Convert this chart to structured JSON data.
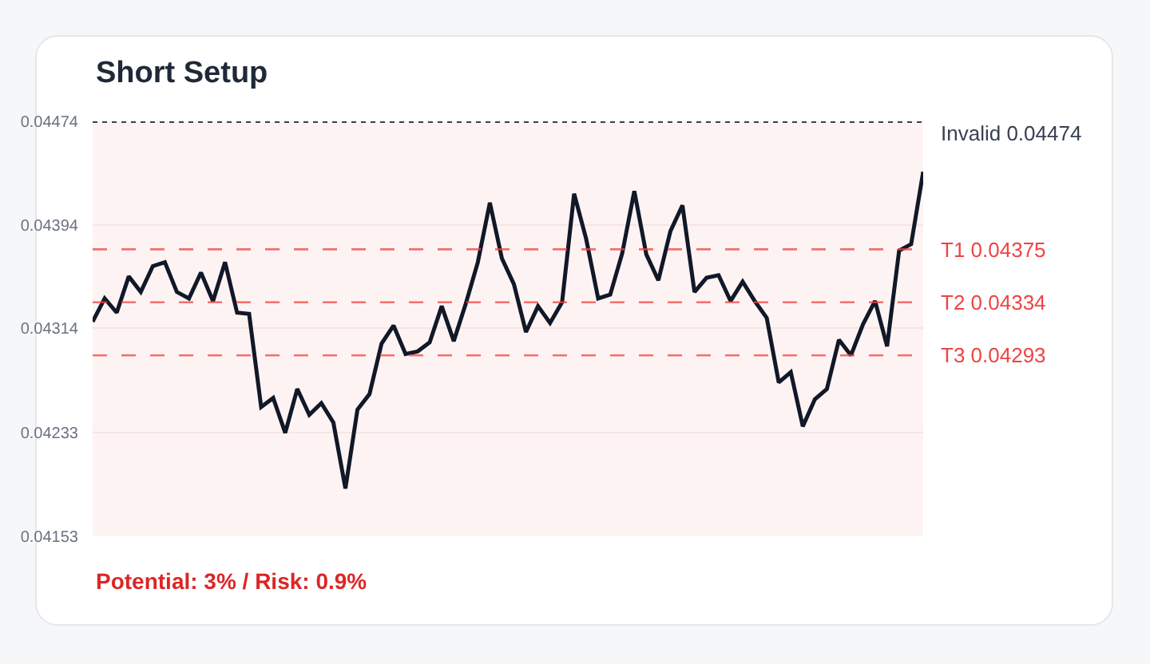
{
  "chart_data": {
    "type": "line",
    "title": "Short Setup",
    "categories": [
      null,
      null,
      null,
      null,
      null,
      null,
      null,
      null,
      null,
      null,
      null,
      null,
      null,
      null,
      null,
      null,
      null,
      null,
      null,
      null,
      null,
      null,
      null,
      null,
      null,
      null,
      null,
      null,
      null,
      null,
      null,
      null,
      null,
      null,
      null,
      null,
      null,
      null,
      null,
      null,
      null,
      null,
      null,
      null,
      null,
      null,
      null,
      null,
      null,
      null,
      null,
      null,
      null,
      null,
      null,
      null,
      null,
      null,
      null,
      null,
      null,
      null,
      null,
      null,
      null,
      null,
      null,
      null,
      null,
      null
    ],
    "series": [
      {
        "color": "#111827",
        "values": [
          0.04319,
          0.04337,
          0.04326,
          0.04354,
          0.04342,
          0.04362,
          0.04365,
          0.04342,
          0.04337,
          0.04357,
          0.04335,
          0.04365,
          0.04326,
          0.04325,
          0.04253,
          0.0426,
          0.04233,
          0.04267,
          0.04247,
          0.04256,
          0.04241,
          0.0419,
          0.04251,
          0.04263,
          0.04302,
          0.04316,
          0.04294,
          0.04296,
          0.04303,
          0.04331,
          0.04304,
          0.04333,
          0.04365,
          0.04411,
          0.04368,
          0.04348,
          0.04311,
          0.04331,
          0.04318,
          0.04334,
          0.04418,
          0.04383,
          0.04337,
          0.0434,
          0.04372,
          0.0442,
          0.04371,
          0.04351,
          0.04389,
          0.04409,
          0.04342,
          0.04353,
          0.04355,
          0.04335,
          0.0435,
          0.04335,
          0.04322,
          0.04272,
          0.0428,
          0.04238,
          0.04259,
          0.04267,
          0.04305,
          0.04293,
          0.04317,
          0.04335,
          0.043,
          0.04374,
          0.04379,
          0.04435
        ]
      }
    ],
    "ylim": [
      0.04153,
      0.04474
    ],
    "yticks": [
      0.04153,
      0.04233,
      0.04314,
      0.04394,
      0.04474
    ],
    "grid": "y",
    "tick_labels": "y",
    "line_style": "solid",
    "ref_lines": [
      {
        "axis": "y",
        "value": 0.04474,
        "label": "Invalid 0.04474",
        "color": "#374151",
        "line_style": "dotted"
      },
      {
        "axis": "y",
        "value": 0.04375,
        "label": "T1 0.04375",
        "color": "#ef4444",
        "line_style": "dashed"
      },
      {
        "axis": "y",
        "value": 0.04334,
        "label": "T2 0.04334",
        "color": "#ef4444",
        "line_style": "dashed"
      },
      {
        "axis": "y",
        "value": 0.04293,
        "label": "T3 0.04293",
        "color": "#ef4444",
        "line_style": "dashed"
      }
    ],
    "annotations": [
      "Potential: 3% / Risk: 0.9%"
    ]
  }
}
